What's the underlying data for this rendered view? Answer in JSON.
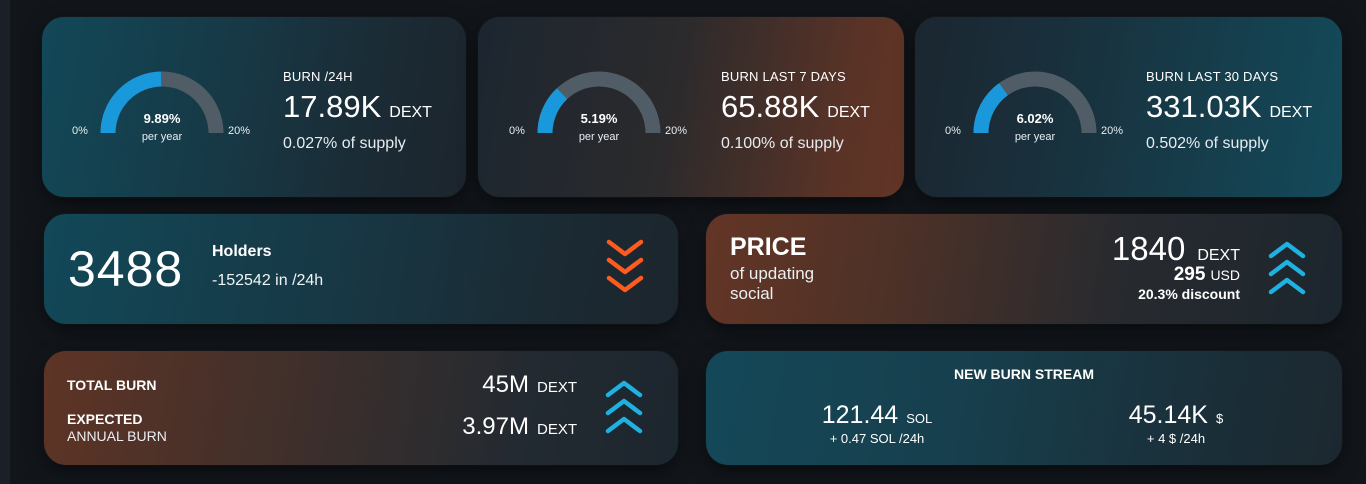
{
  "colors": {
    "gauge_fill": "#1a98dc",
    "gauge_track": "#505d66",
    "chevron_down": "#ff5a1f",
    "chevron_up": "#1fb1e2"
  },
  "burn_cards": [
    {
      "gauge_value": "9.89%",
      "gauge_fraction": 0.4945,
      "gauge_sub": "per year",
      "gauge_min": "0%",
      "gauge_max": "20%",
      "label": "BURN /24H",
      "amount": "17.89K",
      "unit": "DEXT",
      "supply": "0.027% of supply"
    },
    {
      "gauge_value": "5.19%",
      "gauge_fraction": 0.2595,
      "gauge_sub": "per year",
      "gauge_min": "0%",
      "gauge_max": "20%",
      "label": "BURN LAST 7 DAYS",
      "amount": "65.88K",
      "unit": "DEXT",
      "supply": "0.100% of supply"
    },
    {
      "gauge_value": "6.02%",
      "gauge_fraction": 0.301,
      "gauge_sub": "per year",
      "gauge_min": "0%",
      "gauge_max": "20%",
      "label": "BURN LAST 30 DAYS",
      "amount": "331.03K",
      "unit": "DEXT",
      "supply": "0.502% of supply"
    }
  ],
  "holders": {
    "count": "3488",
    "label": "Holders",
    "change": "-152542 in /24h",
    "trend_icon": "chevron-triple-down-icon"
  },
  "price": {
    "title": "PRICE",
    "subtitle_line1": "of updating",
    "subtitle_line2": "social",
    "amount": "1840",
    "amount_unit": "DEXT",
    "usd": "295",
    "usd_unit": "USD",
    "discount": "20.3% discount",
    "trend_icon": "chevron-triple-up-icon"
  },
  "total_burn": {
    "label": "TOTAL BURN",
    "value": "45M",
    "unit": "DEXT",
    "expected_label": "EXPECTED",
    "expected_sub": "ANNUAL BURN",
    "expected_value": "3.97M",
    "expected_unit": "DEXT",
    "trend_icon": "chevron-triple-up-icon"
  },
  "burn_stream": {
    "title": "NEW BURN STREAM",
    "left_value": "121.44",
    "left_unit": "SOL",
    "left_change": "+ 0.47 SOL /24h",
    "right_value": "45.14K",
    "right_unit": "$",
    "right_change": "+ 4 $ /24h"
  }
}
